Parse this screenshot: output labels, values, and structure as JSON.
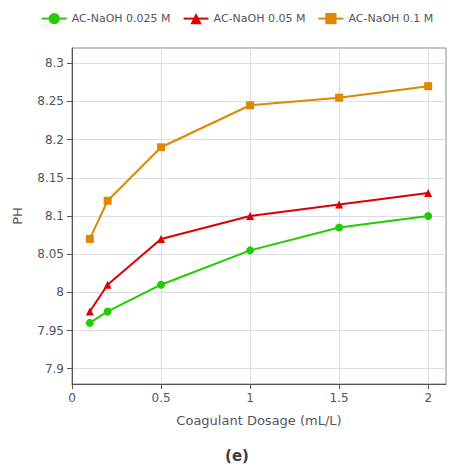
{
  "chart_data": {
    "type": "line",
    "x": [
      0.1,
      0.2,
      0.5,
      1.0,
      1.5,
      2.0
    ],
    "series": [
      {
        "name": "AC-NaOH 0.025 M",
        "color": "#22cc00",
        "marker": "circle",
        "values": [
          7.96,
          7.975,
          8.01,
          8.055,
          8.085,
          8.1
        ]
      },
      {
        "name": "AC-NaOH 0.05 M",
        "color": "#dd0000",
        "marker": "triangle",
        "values": [
          7.975,
          8.01,
          8.07,
          8.1,
          8.115,
          8.13
        ]
      },
      {
        "name": "AC-NaOH 0.1 M",
        "color": "#dd8800",
        "marker": "square",
        "values": [
          8.07,
          8.12,
          8.19,
          8.245,
          8.255,
          8.27
        ]
      }
    ],
    "xlabel": "Coagulant Dosage (mL/L)",
    "ylabel": "PH",
    "xlim": [
      0.0,
      2.1
    ],
    "ylim": [
      7.88,
      8.32
    ],
    "xticks": [
      0,
      0.5,
      1,
      1.5,
      2
    ],
    "yticks": [
      7.9,
      7.95,
      8,
      8.05,
      8.1,
      8.15,
      8.2,
      8.25,
      8.3
    ],
    "caption": "(e)",
    "legend": "top",
    "grid": true
  }
}
